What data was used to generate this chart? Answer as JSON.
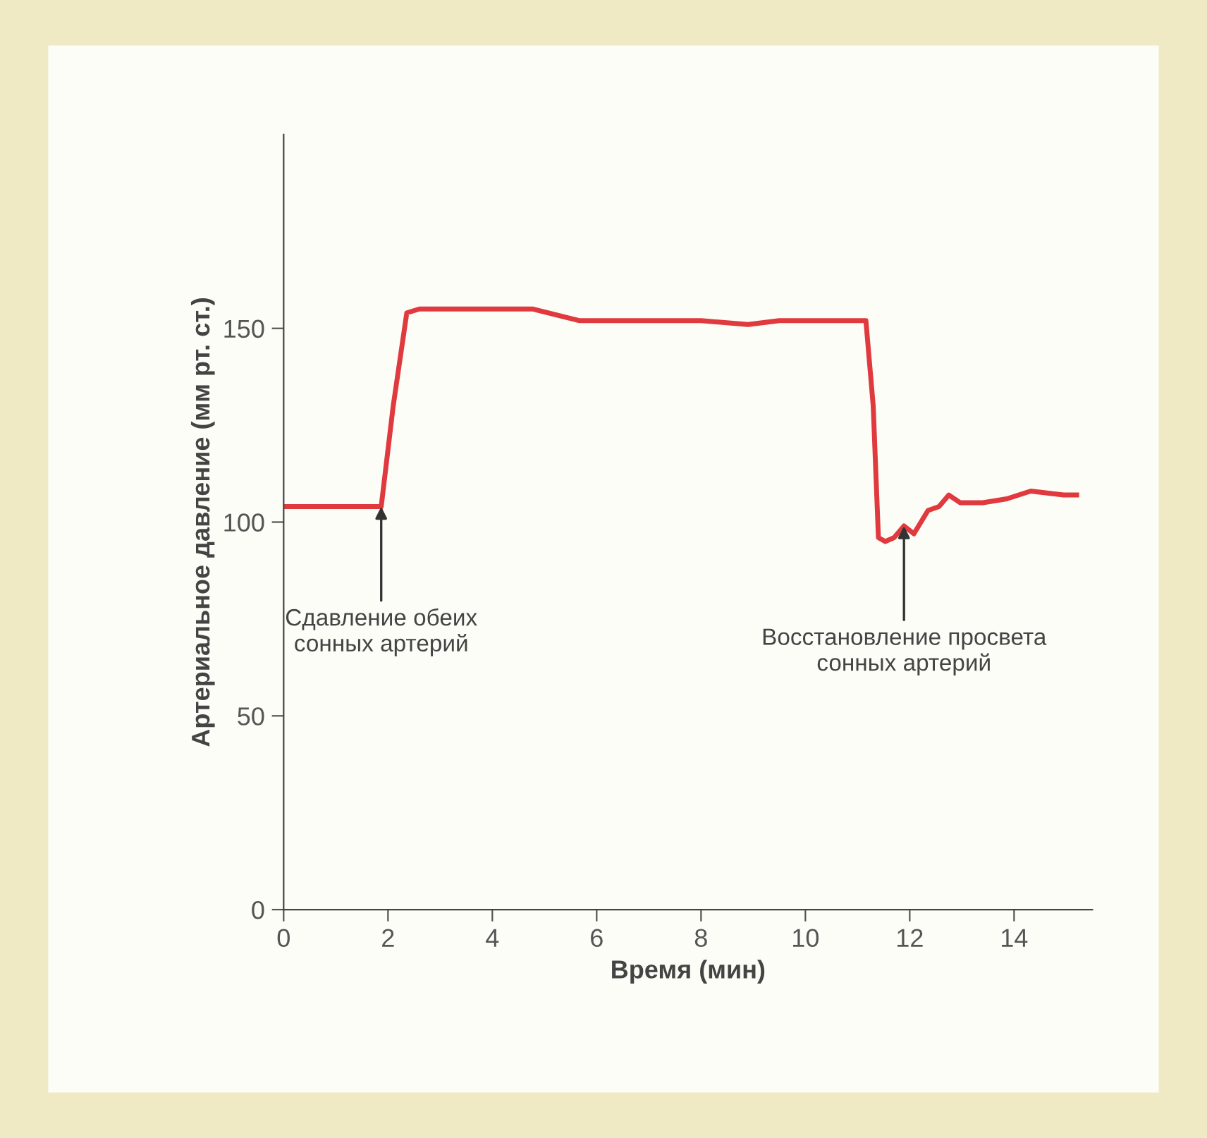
{
  "chart_data": {
    "type": "line",
    "xlabel": "Время (мин)",
    "ylabel": "Артериальное давление (мм рт. ст.)",
    "series": [
      {
        "color": "#e0393e",
        "x": [
          0,
          0.5,
          1.0,
          1.5,
          1.87,
          2.1,
          2.36,
          2.6,
          3.5,
          4.77,
          5.66,
          7.0,
          8.0,
          8.9,
          9.5,
          10.5,
          11.16,
          11.3,
          11.4,
          11.53,
          11.7,
          11.89,
          12.08,
          12.35,
          12.56,
          12.75,
          12.97,
          13.4,
          13.86,
          14.32,
          14.95,
          15.2
        ],
        "values": [
          104,
          104,
          104,
          104,
          104,
          130,
          154,
          155,
          155,
          155,
          152,
          152,
          152,
          151,
          152,
          152,
          152,
          130,
          96,
          95,
          96,
          99,
          97,
          103,
          104,
          107,
          105,
          105,
          106,
          108,
          107,
          107
        ]
      }
    ],
    "xlim": [
      0,
      15.5
    ],
    "ylim": [
      0,
      200
    ],
    "xticks": [
      0,
      2,
      4,
      6,
      8,
      10,
      12,
      14
    ],
    "yticks": [
      0,
      50,
      100,
      150
    ],
    "grid": false,
    "marker": "none",
    "line_style": "solid",
    "annotations": [
      {
        "text": "Сдавление обеих\nсонных артерий",
        "x": 1.87,
        "y": 104
      },
      {
        "text": "Восстановление просвета\nсонных артерий",
        "x": 11.89,
        "y": 99
      }
    ]
  }
}
